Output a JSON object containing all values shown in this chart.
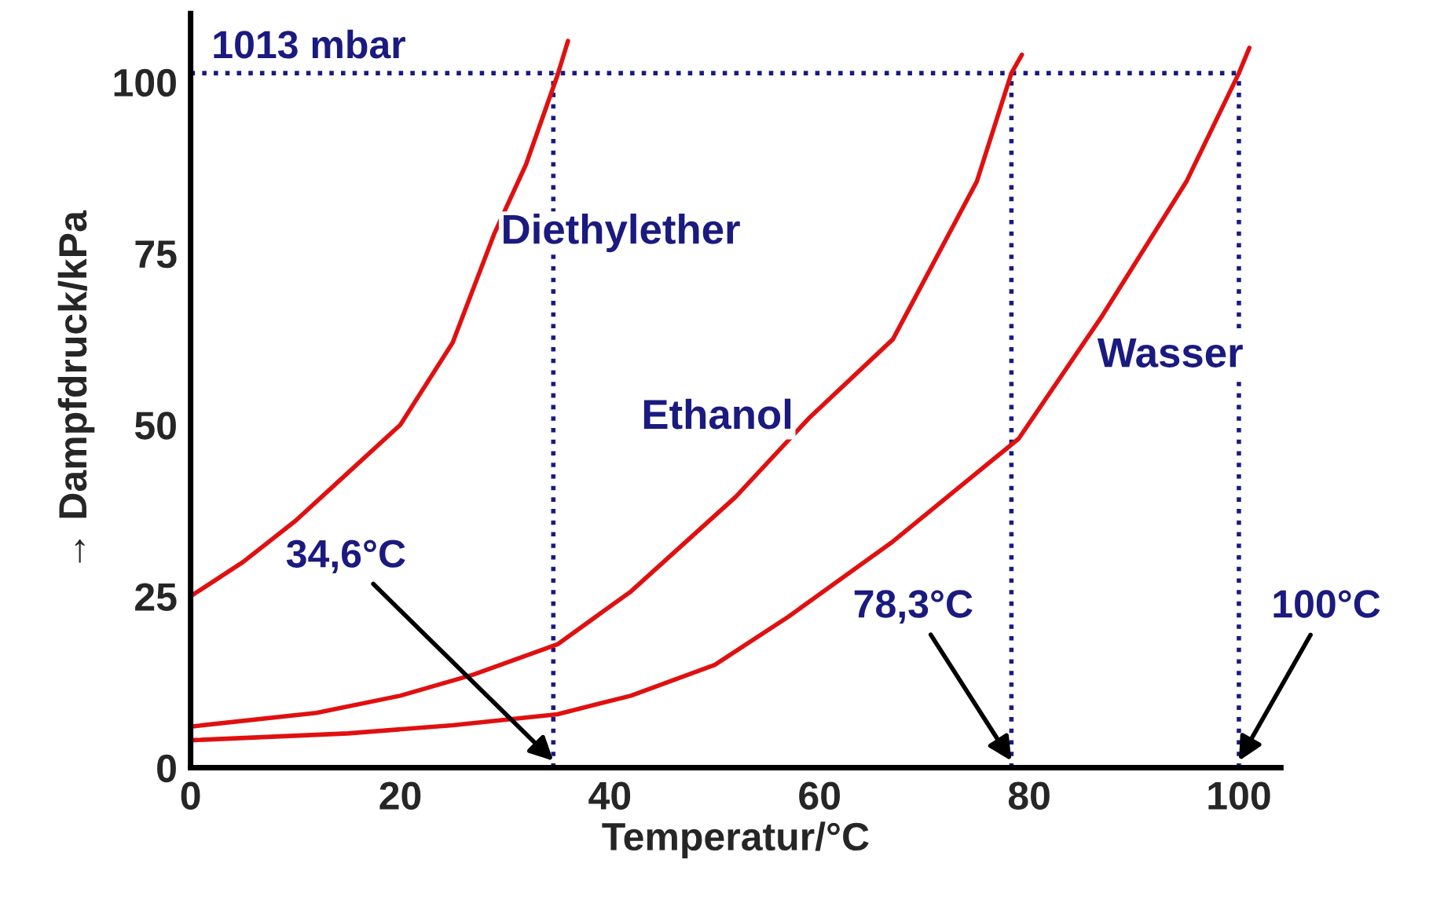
{
  "chart_data": {
    "type": "line",
    "xlabel": "Temperatur/°C",
    "ylabel": "→ Dampfdruck/kPa",
    "xlim": [
      0,
      104
    ],
    "ylim": [
      0,
      110
    ],
    "xticks": [
      0,
      20,
      40,
      60,
      80,
      100
    ],
    "yticks": [
      0,
      25,
      50,
      75,
      100
    ],
    "grid": false,
    "legend": false,
    "marker": "none",
    "line_style": "solid",
    "series": [
      {
        "name": "Diethylether",
        "color": "#e01010",
        "x": [
          0,
          5,
          10,
          15,
          20,
          25,
          29,
          32,
          35,
          36
        ],
        "values": [
          25,
          30,
          36,
          43,
          50,
          62,
          78,
          88,
          101,
          106
        ]
      },
      {
        "name": "Ethanol",
        "color": "#e01010",
        "x": [
          0,
          12,
          20,
          27,
          35,
          42,
          52,
          59,
          67,
          75,
          78.3,
          79.3
        ],
        "values": [
          6,
          8,
          10.5,
          13.6,
          18,
          25.7,
          39.5,
          51,
          62.5,
          85.5,
          101.3,
          104
        ]
      },
      {
        "name": "Wasser",
        "color": "#e01010",
        "x": [
          0,
          15,
          25,
          35,
          42,
          50,
          57,
          67,
          79,
          87,
          95,
          100,
          101
        ],
        "values": [
          4,
          5,
          6.2,
          7.8,
          10.5,
          15,
          22,
          33,
          48,
          66,
          85.5,
          101.3,
          105
        ]
      }
    ],
    "ref_lines": [
      {
        "axis": "y",
        "value": 101.3,
        "label": "1013 mbar",
        "color": "#1a1a80",
        "line_style": "dotted"
      },
      {
        "axis": "x",
        "value": 34.6,
        "label": "34,6°C",
        "color": "#1a1a80",
        "line_style": "dotted"
      },
      {
        "axis": "x",
        "value": 78.3,
        "label": "78,3°C",
        "color": "#1a1a80",
        "line_style": "dotted"
      },
      {
        "axis": "x",
        "value": 100,
        "label": "100°C",
        "color": "#1a1a80",
        "line_style": "dotted"
      }
    ]
  }
}
